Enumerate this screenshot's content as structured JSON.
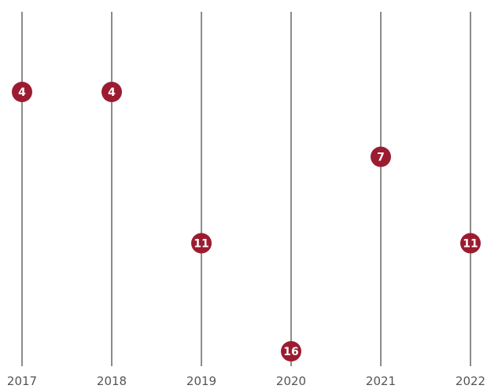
{
  "chart_data": {
    "type": "scatter",
    "title": "",
    "xlabel": "",
    "ylabel": "",
    "categories": [
      "2017",
      "2018",
      "2019",
      "2020",
      "2021",
      "2022"
    ],
    "series": [
      {
        "values": [
          4,
          4,
          11,
          16,
          7,
          11
        ]
      }
    ],
    "y_orientation": "inverted",
    "ylim": [
      1,
      16
    ],
    "grid": false,
    "legend": "none",
    "colors": {
      "marker": "#9b1c31",
      "marker_text": "#ffffff",
      "axis_line": "#1a1a1a",
      "tick_text": "#555555"
    }
  }
}
